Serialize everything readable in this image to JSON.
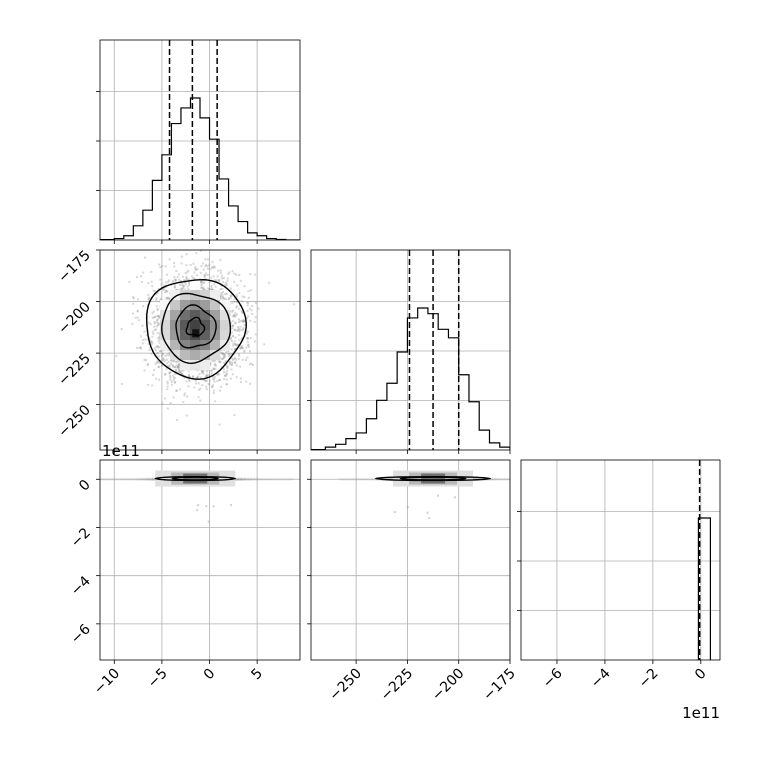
{
  "chart_data": {
    "type": "corner",
    "title": "",
    "colors": {
      "ink": "#000000",
      "grid": "#b0b0b0",
      "points": "#8c8c8c"
    },
    "parameters": [
      {
        "label": "",
        "range": [
          -11.5,
          9.5
        ],
        "ticks": [
          -10,
          -5,
          0,
          5
        ],
        "tick_labels": [
          "−10",
          "−5",
          "0",
          "5"
        ]
      },
      {
        "label": "",
        "range": [
          -272,
          -175
        ],
        "ticks": [
          -250,
          -225,
          -200,
          -175
        ],
        "tick_labels": [
          "−250",
          "−225",
          "−200",
          "−175"
        ]
      },
      {
        "label": "",
        "range": [
          -7.5,
          0.8
        ],
        "ticks": [
          -6,
          -4,
          -2,
          0
        ],
        "tick_labels": [
          "−6",
          "−4",
          "−2",
          "0"
        ],
        "offset_text": "1e11"
      }
    ],
    "quantiles": [
      {
        "param": 0,
        "values": [
          -4.2,
          -1.8,
          0.8
        ]
      },
      {
        "param": 1,
        "values": [
          -224,
          -212.5,
          -200
        ]
      },
      {
        "param": 2,
        "values": [
          -0.05
        ]
      }
    ],
    "histograms": [
      {
        "param": 0,
        "bin_edges": [
          -11.5,
          -10,
          -9,
          -8,
          -7,
          -6,
          -5,
          -4,
          -3,
          -2,
          -1,
          0,
          1,
          2,
          3,
          4,
          5,
          6,
          7,
          8,
          9.5
        ],
        "counts": [
          0.003,
          0.01,
          0.03,
          0.1,
          0.21,
          0.42,
          0.6,
          0.82,
          0.93,
          1.0,
          0.86,
          0.71,
          0.43,
          0.24,
          0.13,
          0.05,
          0.03,
          0.01,
          0.004,
          0.0
        ]
      },
      {
        "param": 1,
        "bin_edges": [
          -272,
          -265,
          -260,
          -255,
          -250,
          -245,
          -240,
          -235,
          -230,
          -225,
          -220,
          -215,
          -210,
          -205,
          -200,
          -195,
          -190,
          -185,
          -180,
          -175
        ],
        "counts": [
          0.003,
          0.02,
          0.04,
          0.08,
          0.12,
          0.22,
          0.35,
          0.47,
          0.69,
          0.93,
          1.0,
          0.96,
          0.85,
          0.79,
          0.53,
          0.34,
          0.14,
          0.05,
          0.02
        ]
      },
      {
        "param": 2,
        "bin_edges": [
          -0.1,
          0.4
        ],
        "counts": [
          1.0
        ]
      }
    ],
    "contours": [
      {
        "panel": "p1_vs_p0",
        "center": [
          -1.5,
          -212.5
        ],
        "radii": [
          [
            0.9,
            4.2
          ],
          [
            2.1,
            10
          ],
          [
            3.6,
            16.5
          ],
          [
            5.2,
            24
          ]
        ]
      },
      {
        "panel": "p2_vs_p0",
        "center": [
          -1.5,
          0.03
        ],
        "radii": [
          [
            4.2,
            0.08
          ],
          [
            2.4,
            0.06
          ]
        ]
      },
      {
        "panel": "p2_vs_p1",
        "center": [
          -212.5,
          0.03
        ],
        "radii": [
          [
            28,
            0.08
          ],
          [
            16,
            0.06
          ]
        ]
      }
    ],
    "grid": true,
    "legend": "none"
  }
}
